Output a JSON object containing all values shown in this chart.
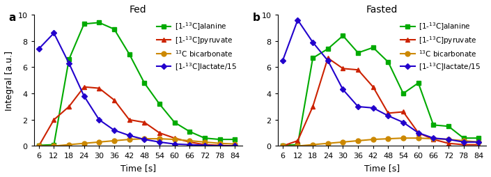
{
  "time": [
    6,
    12,
    18,
    24,
    30,
    36,
    42,
    48,
    54,
    60,
    66,
    72,
    78,
    84
  ],
  "fed": {
    "alanine": [
      0.05,
      0.1,
      6.6,
      9.3,
      9.4,
      8.9,
      7.0,
      4.8,
      3.2,
      1.8,
      1.1,
      0.6,
      0.5,
      0.5
    ],
    "pyruvate": [
      0.0,
      2.0,
      3.0,
      4.5,
      4.4,
      3.5,
      2.0,
      1.8,
      1.0,
      0.6,
      0.3,
      0.1,
      0.05,
      0.0
    ],
    "bicarbonate": [
      0.0,
      0.0,
      0.1,
      0.2,
      0.3,
      0.4,
      0.5,
      0.55,
      0.55,
      0.5,
      0.4,
      0.3,
      0.2,
      0.15
    ],
    "lactate": [
      7.4,
      8.6,
      6.3,
      3.8,
      2.0,
      1.2,
      0.8,
      0.5,
      0.3,
      0.15,
      0.1,
      0.05,
      0.0,
      0.0
    ]
  },
  "fasted": {
    "alanine": [
      0.05,
      0.1,
      6.7,
      7.4,
      8.4,
      7.1,
      7.5,
      6.4,
      4.0,
      4.8,
      1.6,
      1.5,
      0.6,
      0.6
    ],
    "pyruvate": [
      0.0,
      0.4,
      3.0,
      6.7,
      5.9,
      5.8,
      4.5,
      2.5,
      2.6,
      1.0,
      0.5,
      0.2,
      0.1,
      0.1
    ],
    "bicarbonate": [
      0.0,
      0.0,
      0.1,
      0.2,
      0.3,
      0.4,
      0.5,
      0.55,
      0.6,
      0.6,
      0.55,
      0.5,
      0.4,
      0.3
    ],
    "lactate": [
      6.5,
      9.6,
      7.9,
      6.5,
      4.3,
      3.0,
      2.9,
      2.3,
      1.8,
      1.0,
      0.6,
      0.5,
      0.3,
      0.3
    ]
  },
  "colors": {
    "alanine": "#00aa00",
    "pyruvate": "#cc2200",
    "bicarbonate": "#cc8800",
    "lactate": "#2200cc"
  },
  "legend_labels": {
    "alanine": "[1-¹³C]alanine",
    "pyruvate": "[1-¹³C]pyruvate",
    "bicarbonate": "¹³C bicarbonate",
    "lactate": "[1-¹³C]lactate/15"
  },
  "ylim": [
    0,
    10
  ],
  "xlabel": "Time [s]",
  "ylabel": "Integral [a.u.]",
  "title_fed": "Fed",
  "title_fasted": "Fasted",
  "label_a": "a",
  "label_b": "b"
}
